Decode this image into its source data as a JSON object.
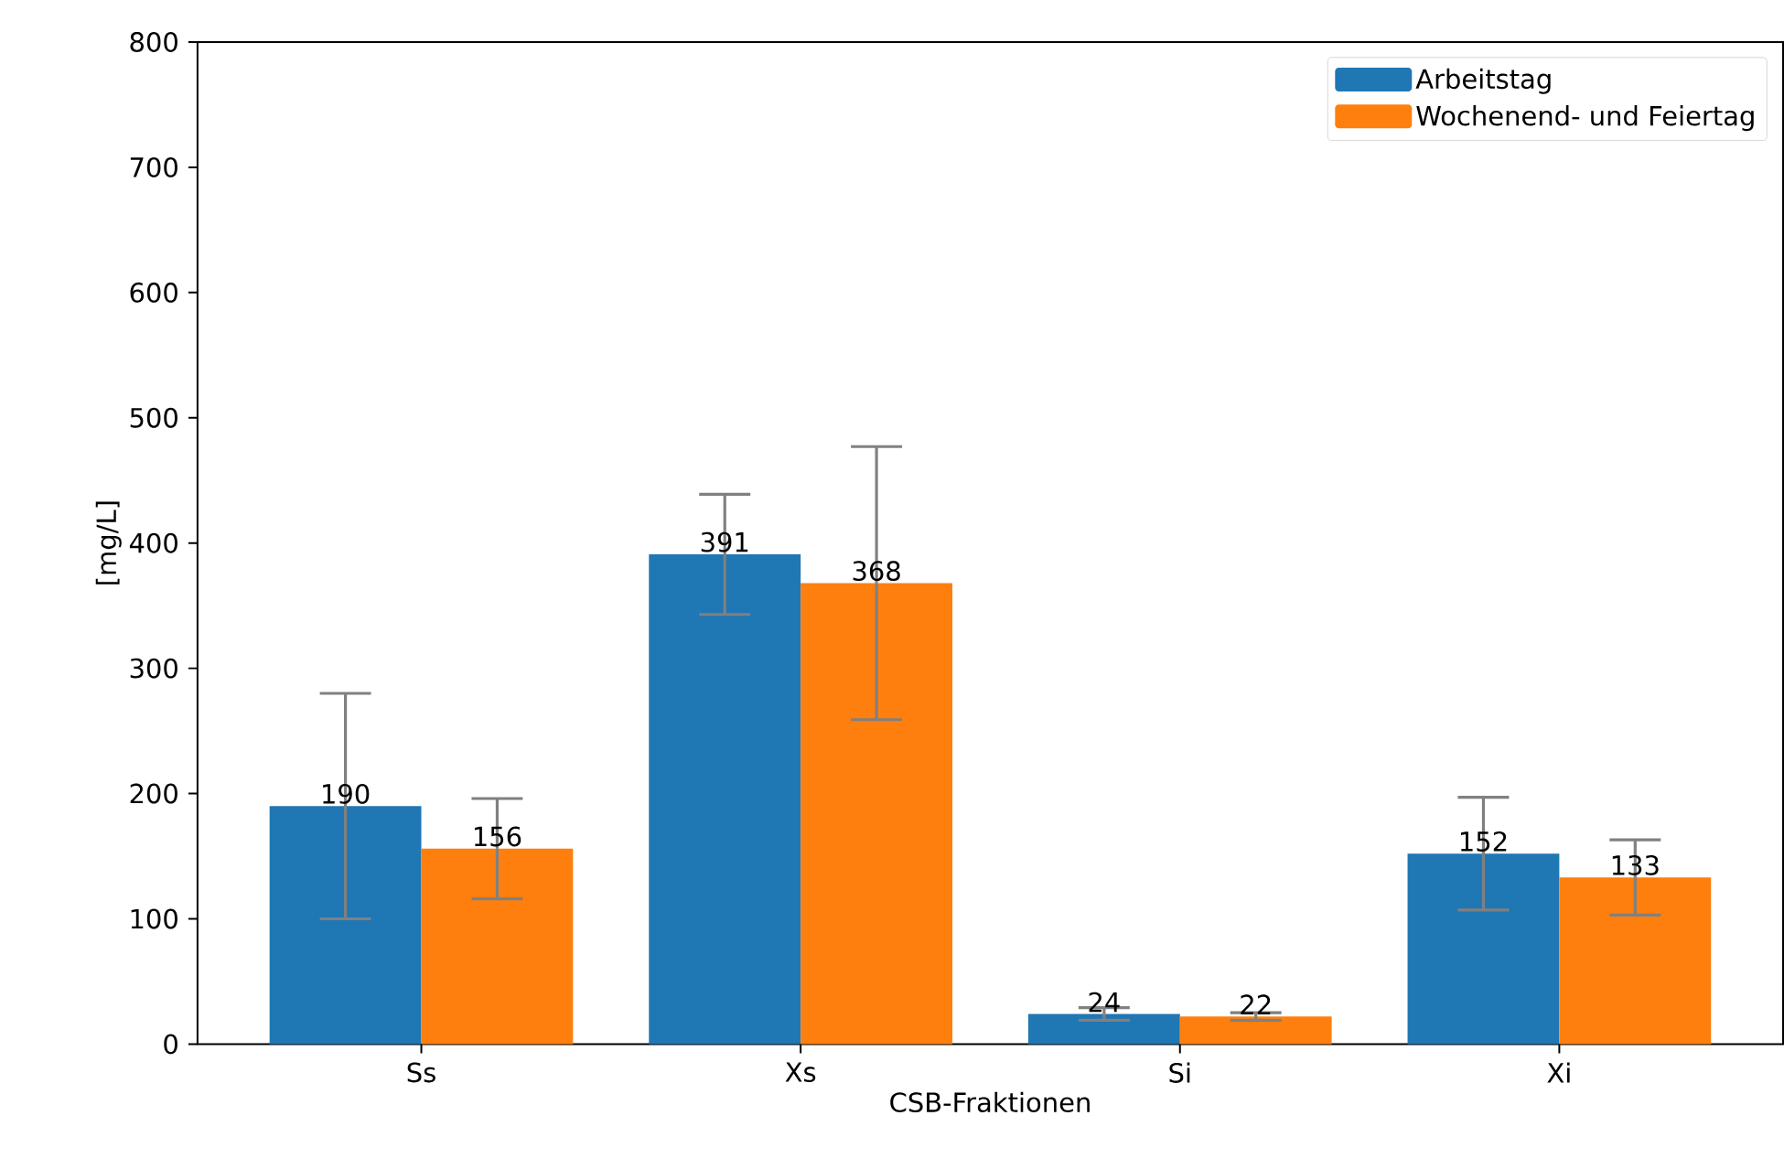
{
  "chart_data": {
    "type": "bar",
    "xlabel": "CSB-Fraktionen",
    "ylabel": "[mg/L]",
    "categories": [
      "Ss",
      "Xs",
      "Si",
      "Xi"
    ],
    "series": [
      {
        "name": "Arbeitstag",
        "color": "#1f77b4",
        "values": [
          190,
          391,
          24,
          152
        ],
        "errors": [
          90,
          48,
          5,
          45
        ]
      },
      {
        "name": "Wochenend- und Feiertag",
        "color": "#ff7f0e",
        "values": [
          156,
          368,
          22,
          133
        ],
        "errors": [
          40,
          109,
          3,
          30
        ]
      }
    ],
    "ylim": [
      0,
      800
    ],
    "yticks": [
      0,
      100,
      200,
      300,
      400,
      500,
      600,
      700,
      800
    ],
    "data_labels": true,
    "legend": "top right",
    "grid": false
  }
}
